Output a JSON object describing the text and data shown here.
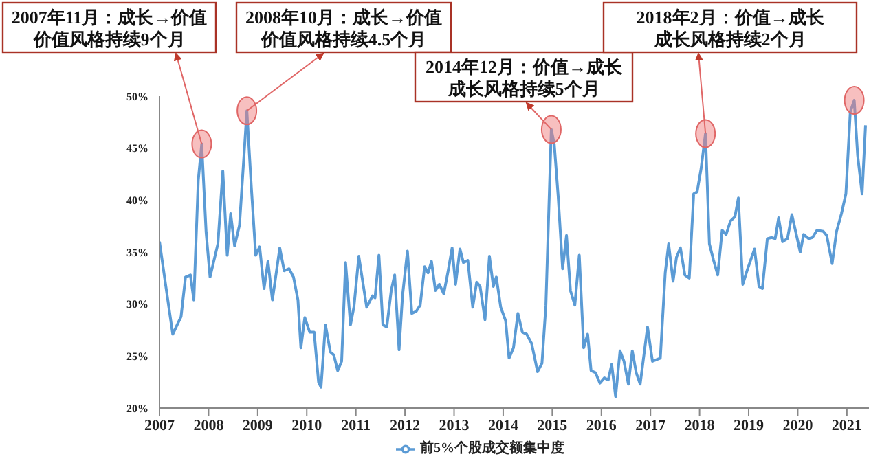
{
  "chart_data": {
    "type": "line",
    "xlim": [
      2007,
      2021.45
    ],
    "xticks": [
      2007,
      2008,
      2009,
      2010,
      2011,
      2012,
      2013,
      2014,
      2015,
      2016,
      2017,
      2018,
      2019,
      2020,
      2021
    ],
    "ylim": [
      20,
      50
    ],
    "yticks": [
      {
        "value": 20,
        "label": "20%"
      },
      {
        "value": 25,
        "label": "25%"
      },
      {
        "value": 30,
        "label": "30%"
      },
      {
        "value": 35,
        "label": "35%"
      },
      {
        "value": 40,
        "label": "40%"
      },
      {
        "value": 45,
        "label": "45%"
      },
      {
        "value": 50,
        "label": "50%"
      }
    ],
    "legend": "bottom",
    "marker": "none",
    "line_style": "solid",
    "series": [
      {
        "name": "前5%个股成交额集中度",
        "color": "#5b9bd5",
        "x": [
          2007.0,
          2007.13,
          2007.27,
          2007.44,
          2007.53,
          2007.63,
          2007.7,
          2007.79,
          2007.86,
          2007.95,
          2008.03,
          2008.19,
          2008.29,
          2008.38,
          2008.45,
          2008.53,
          2008.63,
          2008.78,
          2008.87,
          2008.96,
          2009.04,
          2009.13,
          2009.21,
          2009.3,
          2009.45,
          2009.54,
          2009.64,
          2009.73,
          2009.82,
          2009.88,
          2009.96,
          2010.06,
          2010.15,
          2010.24,
          2010.29,
          2010.38,
          2010.48,
          2010.55,
          2010.63,
          2010.71,
          2010.79,
          2010.89,
          2010.96,
          2011.06,
          2011.22,
          2011.34,
          2011.39,
          2011.47,
          2011.55,
          2011.63,
          2011.72,
          2011.79,
          2011.88,
          2011.95,
          2012.05,
          2012.14,
          2012.23,
          2012.31,
          2012.4,
          2012.47,
          2012.54,
          2012.62,
          2012.7,
          2012.79,
          2012.88,
          2012.96,
          2013.03,
          2013.12,
          2013.19,
          2013.28,
          2013.38,
          2013.46,
          2013.53,
          2013.63,
          2013.72,
          2013.8,
          2013.86,
          2013.95,
          2014.05,
          2014.12,
          2014.21,
          2014.3,
          2014.39,
          2014.48,
          2014.58,
          2014.7,
          2014.79,
          2014.87,
          2014.98,
          2015.04,
          2015.12,
          2015.21,
          2015.29,
          2015.37,
          2015.46,
          2015.55,
          2015.64,
          2015.72,
          2015.79,
          2015.88,
          2015.97,
          2016.06,
          2016.14,
          2016.21,
          2016.29,
          2016.38,
          2016.46,
          2016.55,
          2016.63,
          2016.71,
          2016.79,
          2016.94,
          2017.04,
          2017.2,
          2017.3,
          2017.37,
          2017.46,
          2017.53,
          2017.61,
          2017.7,
          2017.79,
          2017.88,
          2017.95,
          2018.03,
          2018.12,
          2018.2,
          2018.28,
          2018.37,
          2018.46,
          2018.54,
          2018.63,
          2018.72,
          2018.79,
          2018.88,
          2018.98,
          2019.12,
          2019.21,
          2019.28,
          2019.38,
          2019.47,
          2019.54,
          2019.61,
          2019.69,
          2019.79,
          2019.88,
          2019.97,
          2020.05,
          2020.12,
          2020.22,
          2020.3,
          2020.39,
          2020.52,
          2020.59,
          2020.7,
          2020.79,
          2020.89,
          2020.98,
          2021.07,
          2021.15,
          2021.22,
          2021.31,
          2021.38
        ],
        "values": [
          36.0,
          31.7,
          27.1,
          28.8,
          32.6,
          32.8,
          30.4,
          41.9,
          45.4,
          36.9,
          32.6,
          35.8,
          42.8,
          34.7,
          38.7,
          35.6,
          37.6,
          48.6,
          41.3,
          34.7,
          35.5,
          31.5,
          34.1,
          30.4,
          35.4,
          33.2,
          33.4,
          32.6,
          30.4,
          25.8,
          28.7,
          27.3,
          27.3,
          22.5,
          22.0,
          28.0,
          25.4,
          25.1,
          23.6,
          24.5,
          34.0,
          28.0,
          29.7,
          34.6,
          29.7,
          30.8,
          30.6,
          34.7,
          28.0,
          27.8,
          31.3,
          32.8,
          25.6,
          30.8,
          35.1,
          29.1,
          29.3,
          29.9,
          33.6,
          33.0,
          34.1,
          31.3,
          31.9,
          31.0,
          33.2,
          35.4,
          31.9,
          35.3,
          34.0,
          34.2,
          29.7,
          32.1,
          31.7,
          28.5,
          34.6,
          31.7,
          32.6,
          29.7,
          28.4,
          24.8,
          25.8,
          29.1,
          27.3,
          27.1,
          26.2,
          23.5,
          24.3,
          29.9,
          46.8,
          45.4,
          40.4,
          33.4,
          36.6,
          31.3,
          29.9,
          34.7,
          25.8,
          27.1,
          23.6,
          23.4,
          22.4,
          22.9,
          22.7,
          24.2,
          21.1,
          25.5,
          24.5,
          22.3,
          25.5,
          23.4,
          22.3,
          27.8,
          24.5,
          24.8,
          33.0,
          35.8,
          32.2,
          34.5,
          35.4,
          32.8,
          32.5,
          40.6,
          40.8,
          43.0,
          46.4,
          35.8,
          34.3,
          32.8,
          37.1,
          36.7,
          38.0,
          38.4,
          40.2,
          31.9,
          33.4,
          35.3,
          31.7,
          31.5,
          36.3,
          36.4,
          36.3,
          38.3,
          36.0,
          36.3,
          38.6,
          36.7,
          35.0,
          36.7,
          36.3,
          36.4,
          37.1,
          37.0,
          36.6,
          33.9,
          37.0,
          38.7,
          40.6,
          48.5,
          49.6,
          44.3,
          40.6,
          47.2
        ]
      }
    ],
    "annotations": [
      {
        "text": "2007年11月：成长→价值价值风格持续9个月",
        "x": 2007.86,
        "y": 45.4
      },
      {
        "text": "2008年10月：成长→价值价值风格持续4.5个月",
        "x": 2008.78,
        "y": 48.6
      },
      {
        "text": "2014年12月：价值→成长成长风格持续5个月",
        "x": 2014.98,
        "y": 46.8
      },
      {
        "text": "2018年2月：价值→成长成长风格持续2个月",
        "x": 2018.12,
        "y": 46.4
      }
    ]
  }
}
